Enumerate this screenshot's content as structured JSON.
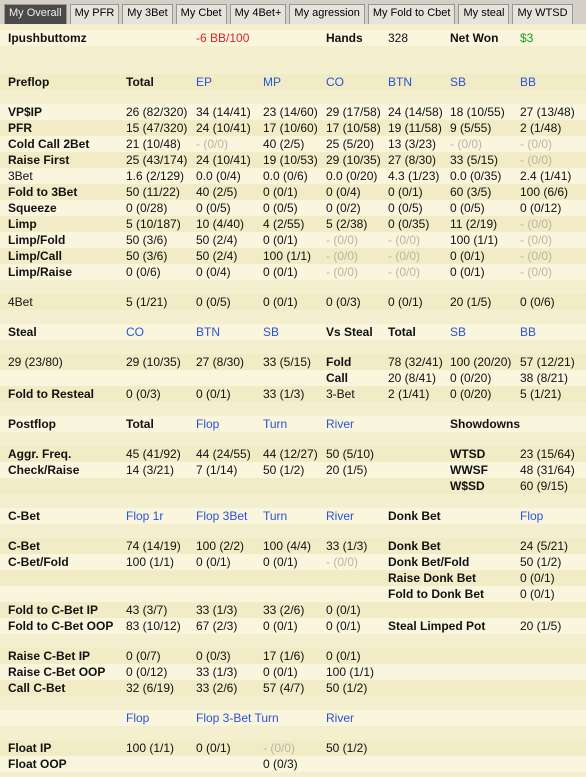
{
  "tabs": [
    "My Overall",
    "My PFR",
    "My 3Bet",
    "My Cbet",
    "My 4Bet+",
    "My agression",
    "My Fold to Cbet",
    "My steal",
    "My WTSD"
  ],
  "active_tab": 0,
  "sections": [
    {
      "rows": [
        [
          "Ipushbuttomz",
          null,
          {
            "text": "-6 BB/100",
            "color": "#e02020"
          },
          null,
          "Hands",
          "328",
          "Net Won",
          {
            "text": "$3",
            "color": "#1a9a1a"
          }
        ]
      ]
    },
    {
      "rows": [
        [
          "Preflop",
          "Total",
          {
            "text": "EP",
            "color": "#2a52d6"
          },
          {
            "text": "MP",
            "color": "#2a52d6"
          },
          {
            "text": "CO",
            "color": "#2a52d6"
          },
          {
            "text": "BTN",
            "color": "#2a52d6"
          },
          {
            "text": "SB",
            "color": "#2a52d6"
          },
          {
            "text": "BB",
            "color": "#2a52d6"
          }
        ]
      ]
    },
    {
      "rows": [
        [
          "VP$IP",
          "26 (82/320)",
          "34 (14/41)",
          "23 (14/60)",
          "29 (17/58)",
          "24 (14/58)",
          "18 (10/55)",
          "27 (13/48)"
        ],
        [
          "PFR",
          "15 (47/320)",
          "24 (10/41)",
          "17 (10/60)",
          "17 (10/58)",
          "19 (11/58)",
          "9 (5/55)",
          "2 (1/48)"
        ],
        [
          "Cold Call 2Bet",
          "21 (10/48)",
          "- (0/0)",
          "40 (2/5)",
          "25 (5/20)",
          "13 (3/23)",
          "- (0/0)",
          "- (0/0)"
        ],
        [
          "Raise First",
          "25 (43/174)",
          "24 (10/41)",
          "19 (10/53)",
          "29 (10/35)",
          "27 (8/30)",
          "33 (5/15)",
          "- (0/0)"
        ],
        [
          "3Bet",
          "1.6 (2/129)",
          "0.0 (0/4)",
          "0.0 (0/6)",
          "0.0 (0/20)",
          "4.3 (1/23)",
          "0.0 (0/35)",
          "2.4 (1/41)"
        ],
        [
          "Fold to 3Bet",
          "50 (11/22)",
          "40 (2/5)",
          "0 (0/1)",
          "0 (0/4)",
          "0 (0/1)",
          "60 (3/5)",
          "100 (6/6)"
        ],
        [
          "Squeeze",
          "0 (0/28)",
          "0 (0/5)",
          "0 (0/5)",
          "0 (0/2)",
          "0 (0/5)",
          "0 (0/5)",
          "0 (0/12)"
        ],
        [
          "Limp",
          "5 (10/187)",
          "10 (4/40)",
          "4 (2/55)",
          "5 (2/38)",
          "0 (0/35)",
          "11 (2/19)",
          "- (0/0)"
        ],
        [
          "Limp/Fold",
          "50 (3/6)",
          "50 (2/4)",
          "0 (0/1)",
          "- (0/0)",
          "- (0/0)",
          "100 (1/1)",
          "- (0/0)"
        ],
        [
          "Limp/Call",
          "50 (3/6)",
          "50 (2/4)",
          "100 (1/1)",
          "- (0/0)",
          "- (0/0)",
          "0 (0/1)",
          "- (0/0)"
        ],
        [
          "Limp/Raise",
          "0 (0/6)",
          "0 (0/4)",
          "0 (0/1)",
          "- (0/0)",
          "- (0/0)",
          "0 (0/1)",
          "- (0/0)"
        ]
      ]
    },
    {
      "rows": [
        [
          "4Bet",
          "5 (1/21)",
          "0 (0/5)",
          "0 (0/1)",
          "0 (0/3)",
          "0 (0/1)",
          "20 (1/5)",
          "0 (0/6)"
        ]
      ]
    },
    {
      "rows": [
        [
          "Steal",
          {
            "text": "CO",
            "color": "#2a52d6"
          },
          {
            "text": "BTN",
            "color": "#2a52d6"
          },
          {
            "text": "SB",
            "color": "#2a52d6"
          },
          "Vs Steal",
          "Total",
          {
            "text": "SB",
            "color": "#2a52d6"
          },
          {
            "text": "BB",
            "color": "#2a52d6"
          }
        ]
      ]
    },
    {
      "rows": [
        [
          "29 (23/80)",
          "29 (10/35)",
          "27 (8/30)",
          "33 (5/15)",
          "Fold",
          "78 (32/41)",
          "100 (20/20)",
          "57 (12/21)"
        ],
        [
          null,
          null,
          null,
          null,
          "Call",
          "20 (8/41)",
          "0 (0/20)",
          "38 (8/21)"
        ],
        [
          "Fold to Resteal",
          "0 (0/3)",
          "0 (0/1)",
          "33 (1/3)",
          "3-Bet",
          "2 (1/41)",
          "0 (0/20)",
          "5 (1/21)"
        ]
      ]
    },
    {
      "rows": [
        [
          "Postflop",
          "Total",
          {
            "text": "Flop",
            "color": "#2a52d6"
          },
          {
            "text": "Turn",
            "color": "#2a52d6"
          },
          {
            "text": "River",
            "color": "#2a52d6"
          },
          null,
          "Showdowns",
          null
        ]
      ]
    },
    {
      "rows": [
        [
          "Aggr. Freq.",
          "45 (41/92)",
          "44 (24/55)",
          "44 (12/27)",
          "50 (5/10)",
          null,
          "WTSD",
          "23 (15/64)"
        ],
        [
          "Check/Raise",
          "14 (3/21)",
          "7 (1/14)",
          "50 (1/2)",
          "20 (1/5)",
          null,
          "WWSF",
          "48 (31/64)"
        ],
        [
          null,
          null,
          null,
          null,
          null,
          null,
          "W$SD",
          "60 (9/15)"
        ]
      ]
    },
    {
      "rows": [
        [
          "C-Bet",
          {
            "text": "Flop 1r",
            "color": "#2a52d6"
          },
          {
            "text": "Flop 3Bet",
            "color": "#2a52d6"
          },
          {
            "text": "Turn",
            "color": "#2a52d6"
          },
          {
            "text": "River",
            "color": "#2a52d6"
          },
          "Donk Bet",
          null,
          {
            "text": "Flop",
            "color": "#2a52d6"
          }
        ]
      ]
    },
    {
      "rows": [
        [
          "C-Bet",
          "74 (14/19)",
          "100 (2/2)",
          "100 (4/4)",
          "33 (1/3)",
          "Donk Bet",
          null,
          "24 (5/21)"
        ],
        [
          "C-Bet/Fold",
          "100 (1/1)",
          "0 (0/1)",
          "0 (0/1)",
          "- (0/0)",
          "Donk Bet/Fold",
          null,
          "50 (1/2)"
        ],
        [
          null,
          null,
          null,
          null,
          null,
          "Raise Donk Bet",
          null,
          "0 (0/1)"
        ],
        [
          null,
          null,
          null,
          null,
          null,
          "Fold to Donk Bet",
          null,
          "0 (0/1)"
        ],
        [
          "Fold to C-Bet IP",
          "43 (3/7)",
          "33 (1/3)",
          "33 (2/6)",
          "0 (0/1)",
          null,
          null,
          null
        ],
        [
          "Fold to C-Bet OOP",
          "83 (10/12)",
          "67 (2/3)",
          "0 (0/1)",
          "0 (0/1)",
          "Steal Limped Pot",
          null,
          "20 (1/5)"
        ]
      ]
    },
    {
      "rows": [
        [
          "Raise C-Bet IP",
          "0 (0/7)",
          "0 (0/3)",
          "17 (1/6)",
          "0 (0/1)",
          null,
          null,
          null
        ],
        [
          "Raise C-Bet OOP",
          "0 (0/12)",
          "33 (1/3)",
          "0 (0/1)",
          "100 (1/1)",
          null,
          null,
          null
        ],
        [
          "Call C-Bet",
          "32 (6/19)",
          "33 (2/6)",
          "57 (4/7)",
          "50 (1/2)",
          null,
          null,
          null
        ]
      ]
    },
    {
      "rows": [
        [
          null,
          {
            "text": "Flop",
            "color": "#2a52d6"
          },
          {
            "text": "Flop 3-Bet Turn",
            "color": "#2a52d6"
          },
          null,
          {
            "text": "River",
            "color": "#2a52d6"
          },
          null,
          null,
          null
        ]
      ]
    },
    {
      "rows": [
        [
          "Float IP",
          "100 (1/1)",
          "0 (0/1)",
          "- (0/0)",
          "50 (1/2)",
          null,
          null,
          null
        ],
        [
          "Float OOP",
          null,
          null,
          "0 (0/3)",
          null,
          null,
          null,
          null
        ]
      ]
    }
  ]
}
